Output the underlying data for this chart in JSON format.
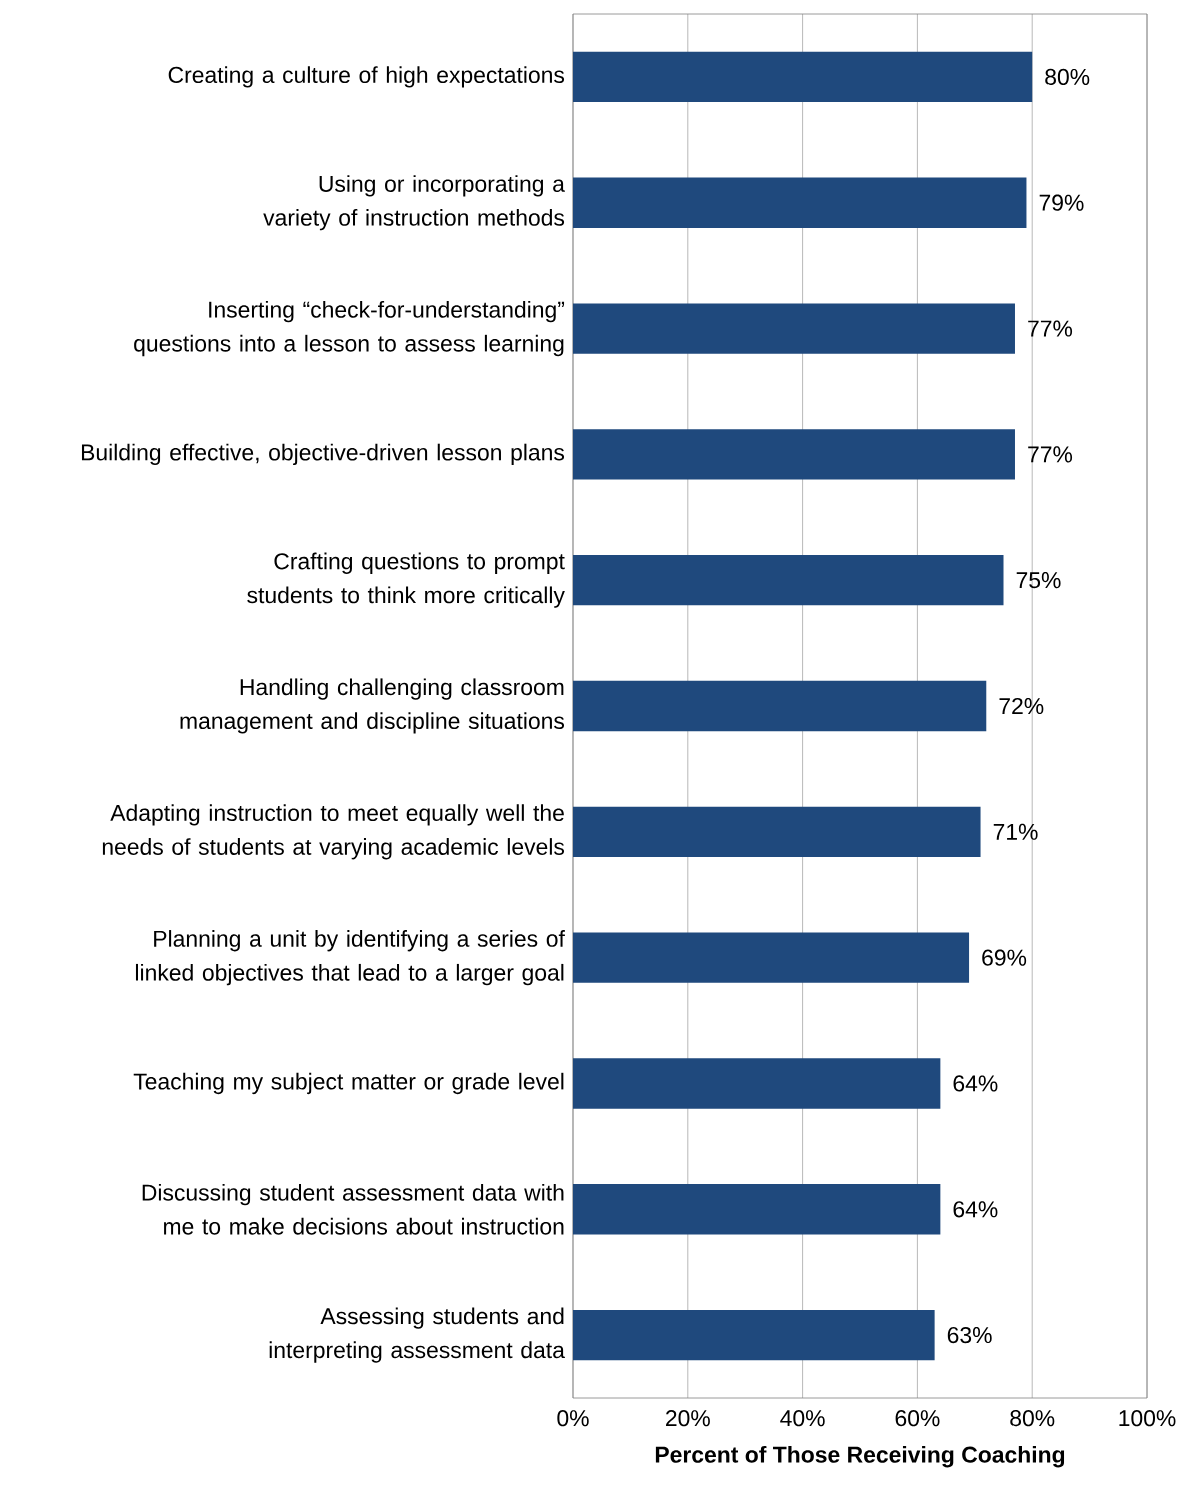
{
  "chart_data": {
    "type": "bar",
    "orientation": "horizontal",
    "xlabel": "**Percent of Those Receiving Coaching**",
    "categories": [
      "Creating a culture of high expectations",
      "Using or incorporating a variety of instruction methods",
      "Inserting “check-for-understanding” questions into a lesson to assess learning",
      "Building effective, objective-driven lesson plans",
      "Crafting questions to prompt students to think more critically",
      "Handling challenging classroom management and discipline situations",
      "Adapting instruction to meet equally well the needs of students at varying academic levels",
      "Planning a unit by identifying a series of linked objectives that lead to a larger goal",
      "Teaching my subject matter or grade level",
      "Discussing student assessment data with me to make decisions about instruction",
      "Assessing students and interpreting assessment data"
    ],
    "values": [
      80,
      79,
      77,
      77,
      75,
      72,
      71,
      69,
      64,
      64,
      63
    ],
    "value_labels": [
      "80%",
      "79%",
      "77%",
      "77%",
      "75%",
      "72%",
      "71%",
      "69%",
      "64%",
      "64%",
      "63%"
    ],
    "color": "#1f497d",
    "xlim": [
      0,
      100
    ],
    "xticks": [
      {
        "value": 0,
        "label": "0%"
      },
      {
        "value": 20,
        "label": "20%"
      },
      {
        "value": 40,
        "label": "40%"
      },
      {
        "value": 60,
        "label": "60%"
      },
      {
        "value": 80,
        "label": "80%"
      },
      {
        "value": 100,
        "label": "100%"
      }
    ],
    "grid": "x"
  }
}
